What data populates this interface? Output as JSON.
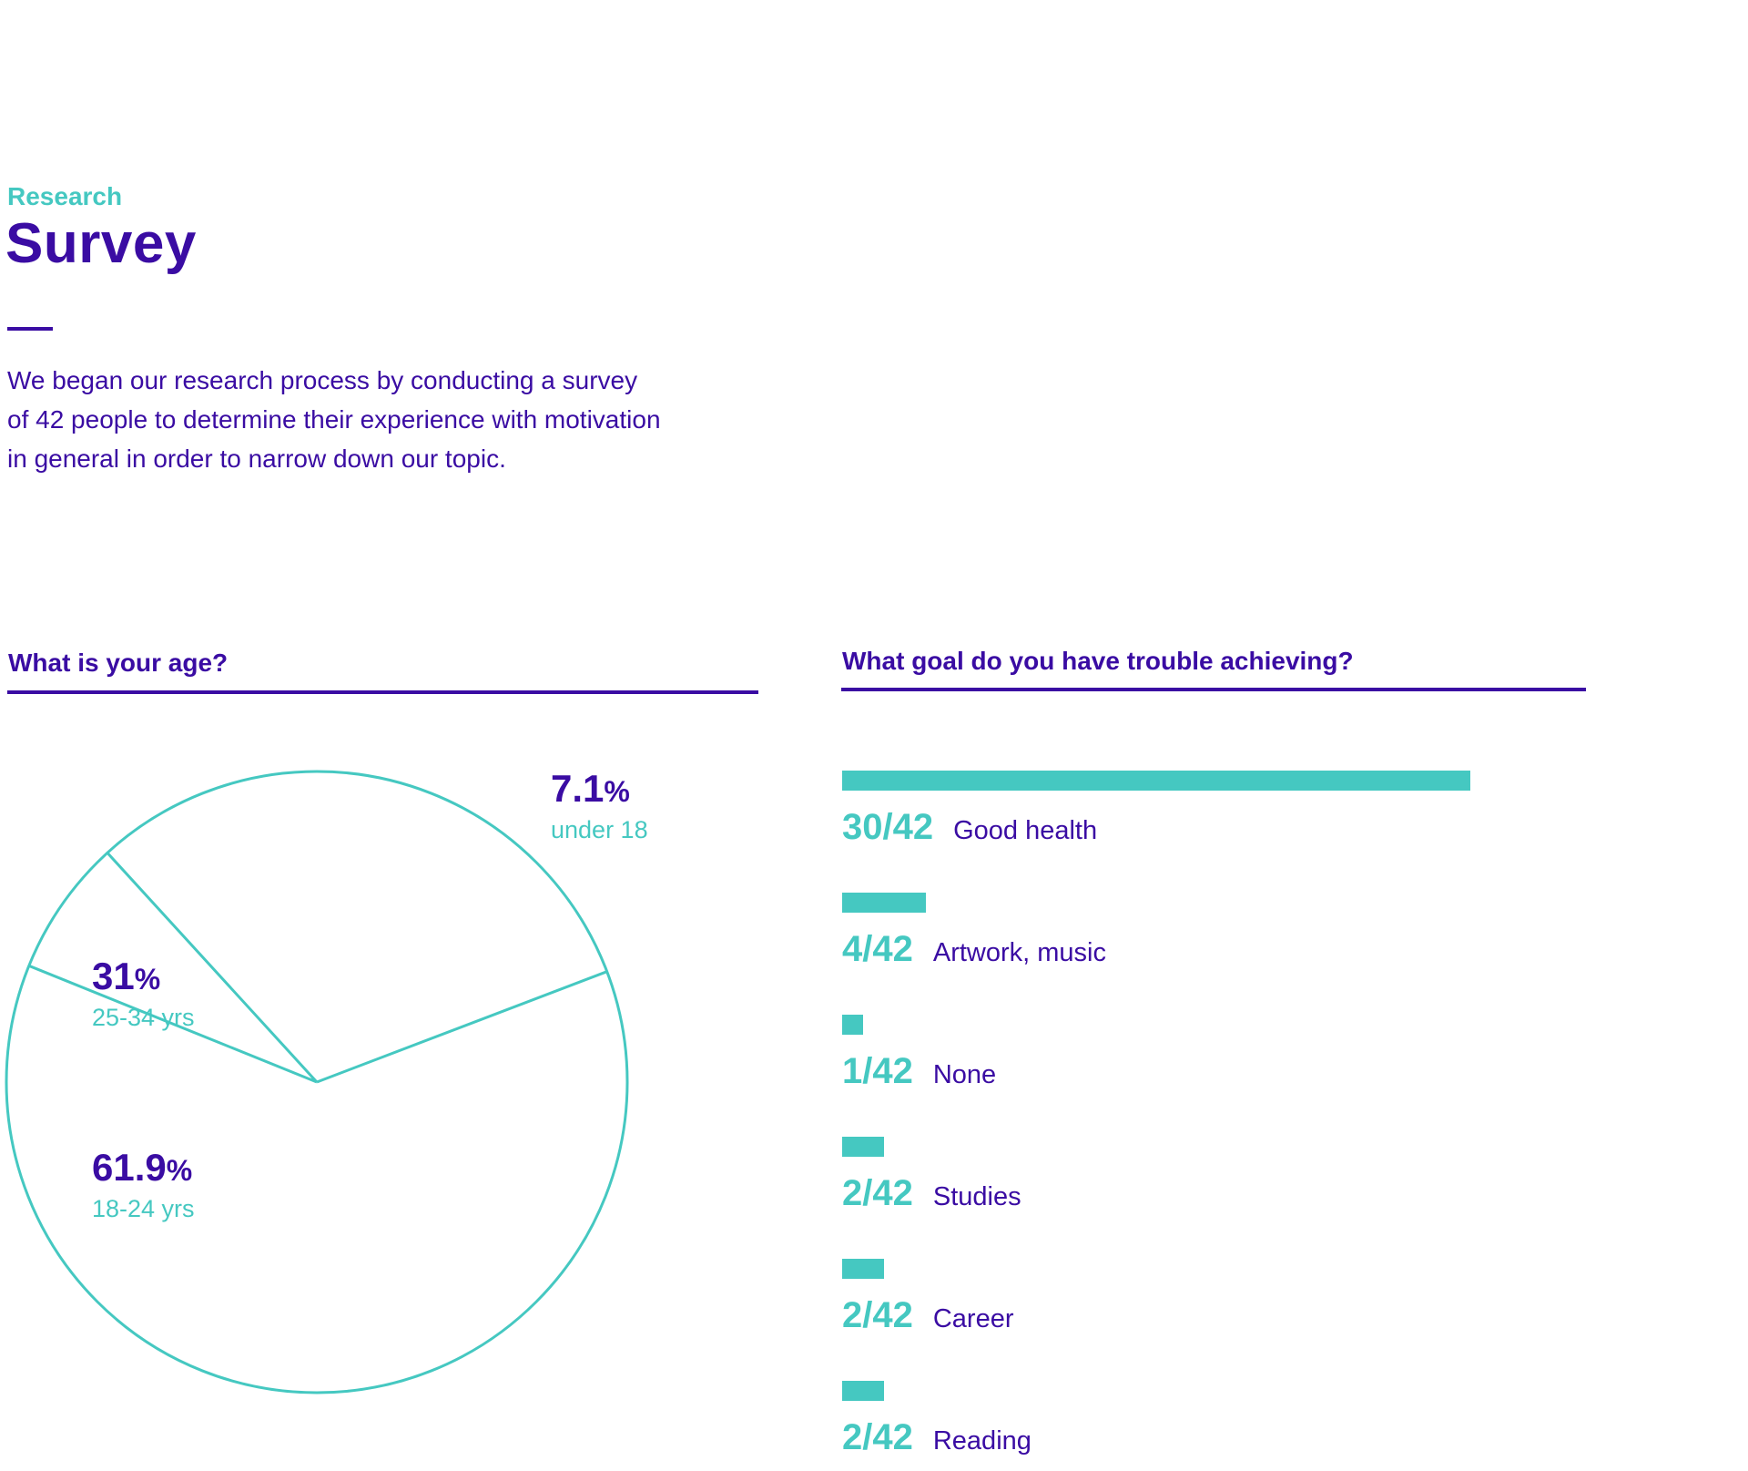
{
  "header": {
    "kicker": "Research",
    "title": "Survey",
    "intro_lines": [
      "We began our research process by conducting a survey",
      "of 42 people to determine their experience with motivation",
      "in general in order to narrow down our topic."
    ]
  },
  "colors": {
    "primary": "#3a0ca3",
    "accent": "#45c8c1",
    "background": "#ffffff"
  },
  "chart_data": [
    {
      "type": "pie",
      "title": "What is your age?",
      "slices": [
        {
          "label": "under 18",
          "value": 7.1,
          "value_text": "7.1",
          "unit": "%"
        },
        {
          "label": "25-34 yrs",
          "value": 31,
          "value_text": "31",
          "unit": "%"
        },
        {
          "label": "18-24 yrs",
          "value": 61.9,
          "value_text": "61.9",
          "unit": "%"
        }
      ]
    },
    {
      "type": "bar",
      "title": "What goal do you have trouble achieving?",
      "total": 42,
      "categories": [
        "Good health",
        "Artwork, music",
        "None",
        "Studies",
        "Career",
        "Reading"
      ],
      "values": [
        30,
        4,
        1,
        2,
        2,
        2
      ],
      "value_labels": [
        "30/42",
        "4/42",
        "1/42",
        "2/42",
        "2/42",
        "2/42"
      ]
    }
  ]
}
